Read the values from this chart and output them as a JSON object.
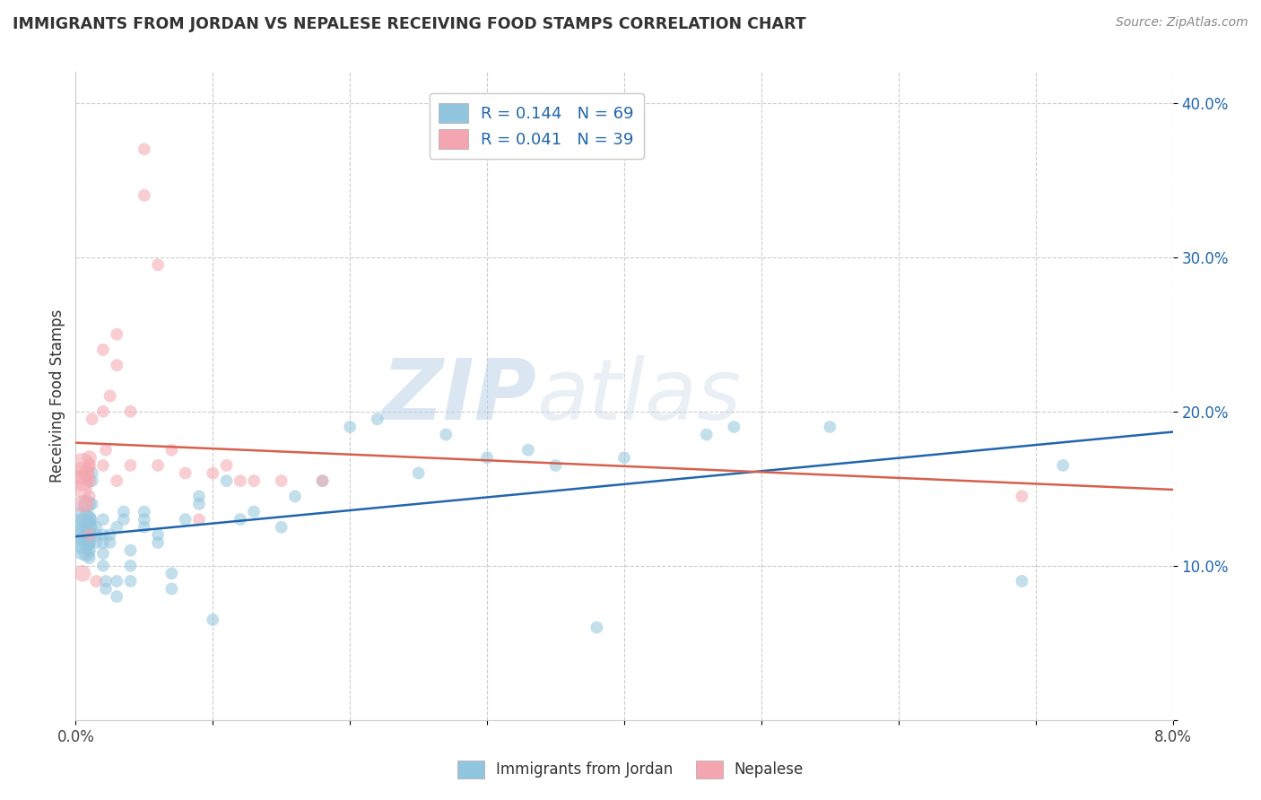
{
  "title": "IMMIGRANTS FROM JORDAN VS NEPALESE RECEIVING FOOD STAMPS CORRELATION CHART",
  "source": "Source: ZipAtlas.com",
  "ylabel": "Receiving Food Stamps",
  "xlim": [
    0.0,
    0.08
  ],
  "ylim": [
    0.0,
    0.42
  ],
  "jordan_color": "#92c5de",
  "nepal_color": "#f4a6b0",
  "jordan_line_color": "#2166ac",
  "nepal_line_color": "#d6604d",
  "jordan_R": 0.144,
  "jordan_N": 69,
  "nepal_R": 0.041,
  "nepal_N": 39,
  "legend_label_jordan": "Immigrants from Jordan",
  "legend_label_nepal": "Nepalese",
  "watermark_zip": "ZIP",
  "watermark_atlas": "atlas",
  "jordan_x": [
    0.0005,
    0.0005,
    0.0005,
    0.0005,
    0.0005,
    0.0008,
    0.0008,
    0.0008,
    0.0008,
    0.001,
    0.001,
    0.001,
    0.001,
    0.001,
    0.001,
    0.0012,
    0.0012,
    0.0012,
    0.0015,
    0.0015,
    0.0015,
    0.002,
    0.002,
    0.002,
    0.002,
    0.002,
    0.0022,
    0.0022,
    0.0025,
    0.0025,
    0.003,
    0.003,
    0.003,
    0.0035,
    0.0035,
    0.004,
    0.004,
    0.004,
    0.005,
    0.005,
    0.005,
    0.006,
    0.006,
    0.007,
    0.007,
    0.008,
    0.009,
    0.009,
    0.01,
    0.011,
    0.012,
    0.013,
    0.015,
    0.016,
    0.018,
    0.02,
    0.022,
    0.025,
    0.027,
    0.03,
    0.033,
    0.035,
    0.038,
    0.04,
    0.046,
    0.048,
    0.055,
    0.069,
    0.072
  ],
  "jordan_y": [
    0.125,
    0.13,
    0.115,
    0.12,
    0.11,
    0.13,
    0.14,
    0.115,
    0.108,
    0.125,
    0.13,
    0.12,
    0.115,
    0.11,
    0.105,
    0.155,
    0.16,
    0.14,
    0.115,
    0.12,
    0.125,
    0.1,
    0.108,
    0.115,
    0.12,
    0.13,
    0.085,
    0.09,
    0.115,
    0.12,
    0.08,
    0.09,
    0.125,
    0.13,
    0.135,
    0.09,
    0.1,
    0.11,
    0.125,
    0.13,
    0.135,
    0.115,
    0.12,
    0.085,
    0.095,
    0.13,
    0.14,
    0.145,
    0.065,
    0.155,
    0.13,
    0.135,
    0.125,
    0.145,
    0.155,
    0.19,
    0.195,
    0.16,
    0.185,
    0.17,
    0.175,
    0.165,
    0.06,
    0.17,
    0.185,
    0.19,
    0.19,
    0.09,
    0.165
  ],
  "jordan_size": [
    500,
    400,
    350,
    300,
    250,
    250,
    220,
    200,
    180,
    180,
    160,
    140,
    120,
    110,
    100,
    100,
    100,
    100,
    100,
    100,
    100,
    100,
    100,
    100,
    100,
    100,
    100,
    100,
    100,
    100,
    100,
    100,
    100,
    100,
    100,
    100,
    100,
    100,
    100,
    100,
    100,
    100,
    100,
    100,
    100,
    100,
    100,
    100,
    100,
    100,
    100,
    100,
    100,
    100,
    100,
    100,
    100,
    100,
    100,
    100,
    100,
    100,
    100,
    100,
    100,
    100,
    100,
    100,
    100
  ],
  "nepal_x": [
    0.0005,
    0.0005,
    0.0005,
    0.0005,
    0.0005,
    0.0005,
    0.0008,
    0.0008,
    0.001,
    0.001,
    0.001,
    0.001,
    0.001,
    0.0012,
    0.0015,
    0.002,
    0.002,
    0.002,
    0.0022,
    0.0025,
    0.003,
    0.003,
    0.003,
    0.004,
    0.004,
    0.005,
    0.005,
    0.006,
    0.006,
    0.007,
    0.008,
    0.009,
    0.01,
    0.011,
    0.012,
    0.013,
    0.015,
    0.018,
    0.069
  ],
  "nepal_y": [
    0.165,
    0.16,
    0.155,
    0.15,
    0.14,
    0.095,
    0.16,
    0.14,
    0.17,
    0.165,
    0.155,
    0.145,
    0.12,
    0.195,
    0.09,
    0.24,
    0.165,
    0.2,
    0.175,
    0.21,
    0.25,
    0.23,
    0.155,
    0.2,
    0.165,
    0.37,
    0.34,
    0.295,
    0.165,
    0.175,
    0.16,
    0.13,
    0.16,
    0.165,
    0.155,
    0.155,
    0.155,
    0.155,
    0.145
  ],
  "nepal_size": [
    400,
    350,
    300,
    250,
    200,
    180,
    160,
    140,
    140,
    120,
    110,
    100,
    100,
    100,
    100,
    100,
    100,
    100,
    100,
    100,
    100,
    100,
    100,
    100,
    100,
    100,
    100,
    100,
    100,
    100,
    100,
    100,
    100,
    100,
    100,
    100,
    100,
    100,
    100
  ]
}
